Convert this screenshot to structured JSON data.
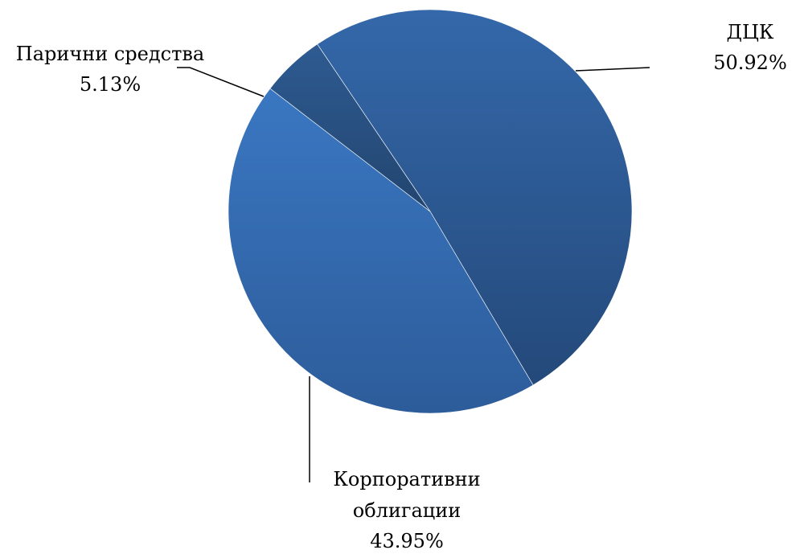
{
  "chart_data": {
    "type": "pie",
    "title": "",
    "slices": [
      {
        "key": "dck",
        "label": "ДЦК",
        "value": 50.92,
        "value_label": "50.92%",
        "color": "#2f5d98"
      },
      {
        "key": "corp",
        "label": "Корпоративни облигации",
        "label_lines": [
          "Корпоративни",
          "облигации"
        ],
        "value": 43.95,
        "value_label": "43.95%",
        "color": "#3568ad"
      },
      {
        "key": "cash",
        "label": "Парични средства",
        "value": 5.13,
        "value_label": "5.13%",
        "color": "#284f82"
      }
    ],
    "legend": "none",
    "start_angle_deg": 61,
    "direction": "clockwise"
  }
}
